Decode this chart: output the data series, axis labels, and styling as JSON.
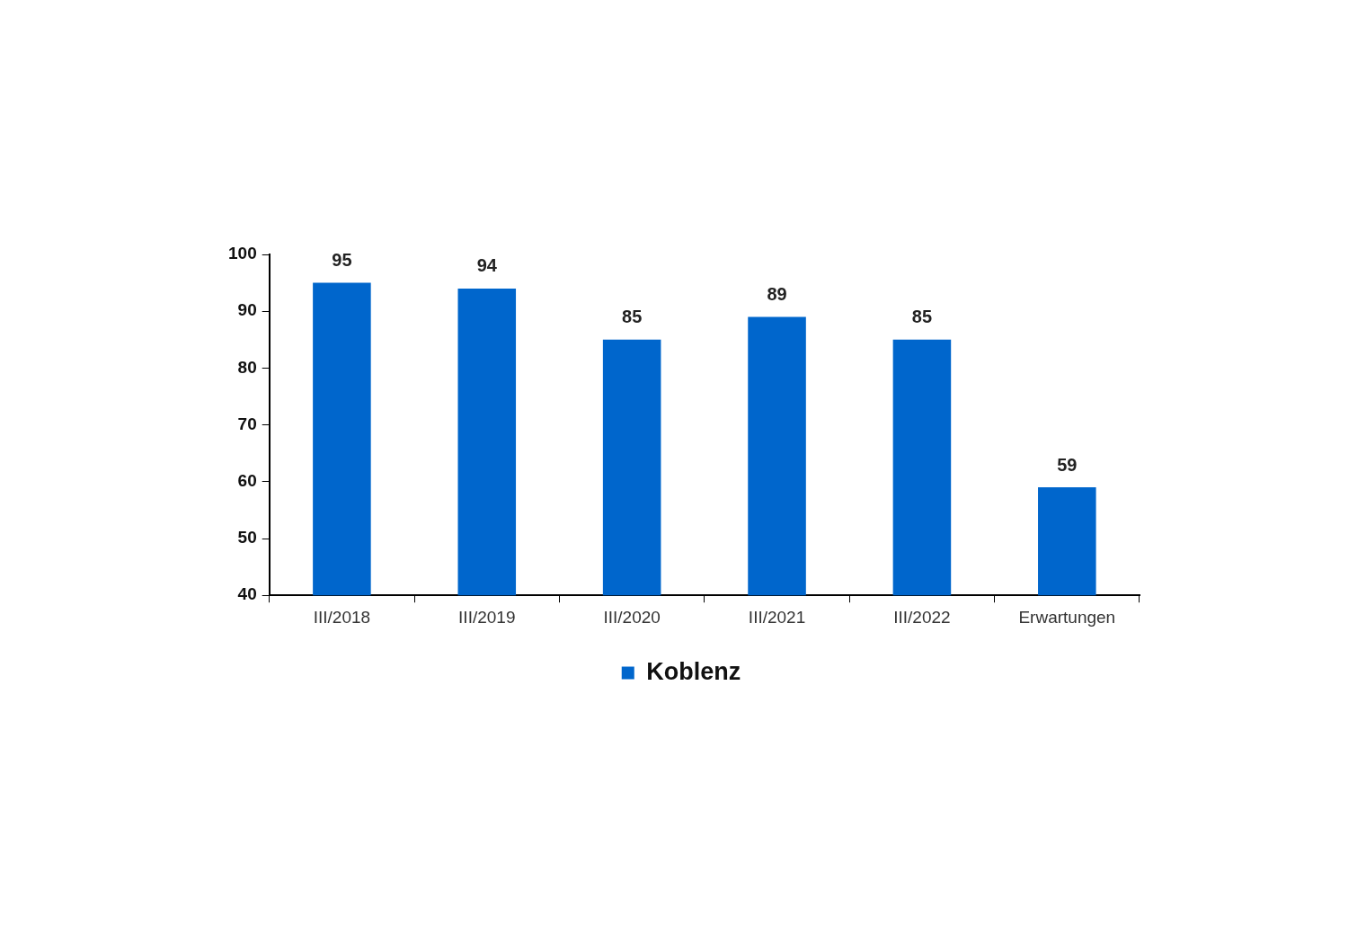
{
  "chart_data": {
    "type": "bar",
    "categories": [
      "III/2018",
      "III/2019",
      "III/2020",
      "III/2021",
      "III/2022",
      "Erwartungen"
    ],
    "series": [
      {
        "name": "Koblenz",
        "color": "#0066cc",
        "values": [
          95,
          94,
          85,
          89,
          85,
          59
        ]
      }
    ],
    "ylim": [
      40,
      100
    ],
    "yticks": [
      40,
      50,
      60,
      70,
      80,
      90,
      100
    ],
    "grid": false,
    "legend": "bottom",
    "data_labels": true
  }
}
